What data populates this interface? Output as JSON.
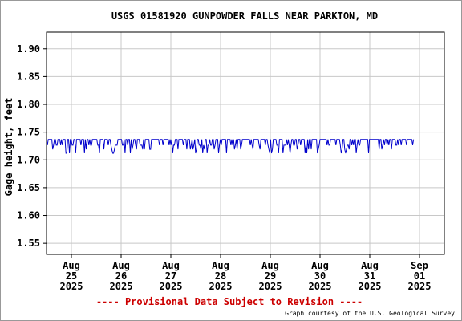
{
  "chart_data": {
    "type": "line",
    "title": "USGS 01581920 GUNPOWDER FALLS NEAR PARKTON, MD",
    "ylabel": "Gage height, feet",
    "xlabel": "",
    "ylim": [
      1.53,
      1.93
    ],
    "xlim": [
      "2025-08-25 00:00",
      "2025-09-01 00:00"
    ],
    "grid": true,
    "y_ticks": [
      "1.55",
      "1.60",
      "1.65",
      "1.70",
      "1.75",
      "1.80",
      "1.85",
      "1.90"
    ],
    "x_ticks": [
      {
        "label": [
          "Aug",
          "25",
          "2025"
        ]
      },
      {
        "label": [
          "Aug",
          "26",
          "2025"
        ]
      },
      {
        "label": [
          "Aug",
          "27",
          "2025"
        ]
      },
      {
        "label": [
          "Aug",
          "28",
          "2025"
        ]
      },
      {
        "label": [
          "Aug",
          "29",
          "2025"
        ]
      },
      {
        "label": [
          "Aug",
          "30",
          "2025"
        ]
      },
      {
        "label": [
          "Aug",
          "31",
          "2025"
        ]
      },
      {
        "label": [
          "Sep",
          "01",
          "2025"
        ]
      }
    ],
    "series": [
      {
        "color": "#0000cc",
        "x": [
          "2025-08-24 08:00",
          "2025-08-31 21:15"
        ],
        "values": [
          1.73,
          1.73
        ],
        "value_range": [
          1.71,
          1.74
        ]
      }
    ],
    "footer_notice": "---- Provisional Data Subject to Revision ----",
    "credit": "Graph courtesy of the U.S. Geological Survey"
  },
  "colors": {
    "series": "#0000cc",
    "notice": "#cc0000",
    "grid": "#c8c8c8",
    "frame": "#000000"
  }
}
